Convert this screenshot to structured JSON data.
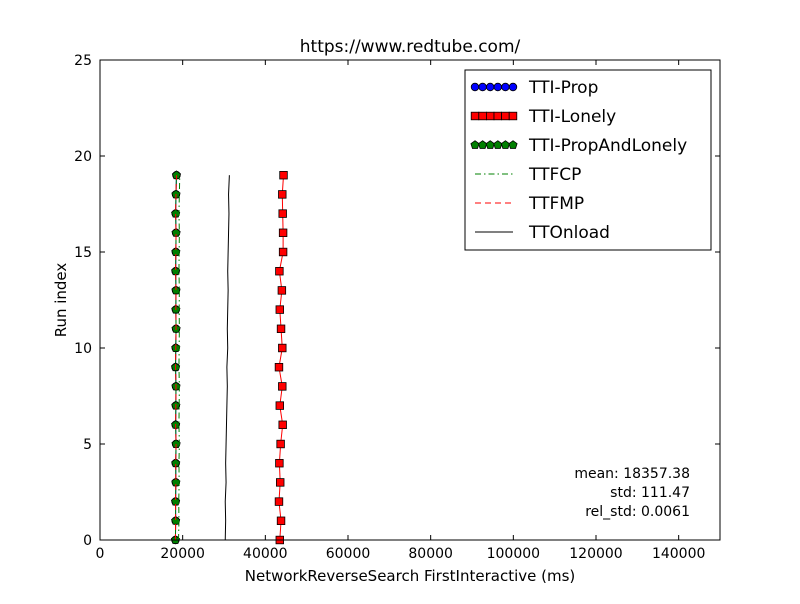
{
  "chart_data": {
    "type": "line",
    "title": "https://www.redtube.com/",
    "xlabel": "NetworkReverseSearch FirstInteractive (ms)",
    "ylabel": "Run index",
    "xlim": [
      0,
      150000
    ],
    "ylim": [
      0,
      25
    ],
    "x_ticks": [
      0,
      20000,
      40000,
      60000,
      80000,
      100000,
      120000,
      140000
    ],
    "x_tick_labels": [
      "0",
      "20000",
      "40000",
      "60000",
      "80000",
      "100000",
      "120000",
      "140000"
    ],
    "y_ticks": [
      0,
      5,
      10,
      15,
      20,
      25
    ],
    "y_tick_labels": [
      "0",
      "5",
      "10",
      "15",
      "20",
      "25"
    ],
    "grid": false,
    "legend_position": "top-right",
    "y": [
      0,
      1,
      2,
      3,
      4,
      5,
      6,
      7,
      8,
      9,
      10,
      11,
      12,
      13,
      14,
      15,
      16,
      17,
      18,
      19
    ],
    "series": [
      {
        "name": "TTI-Prop",
        "style": "solid-with-circle-markers",
        "color": "#0000ff",
        "x": [
          18250,
          18300,
          18280,
          18350,
          18320,
          18400,
          18300,
          18350,
          18380,
          18280,
          18330,
          18400,
          18350,
          18380,
          18300,
          18350,
          18400,
          18300,
          18380,
          18500
        ]
      },
      {
        "name": "TTI-Lonely",
        "style": "solid-with-square-markers",
        "color": "#ff0000",
        "x": [
          43500,
          43800,
          43300,
          43600,
          43400,
          43700,
          44200,
          43500,
          44100,
          43300,
          44100,
          43800,
          43500,
          44000,
          43400,
          44300,
          44300,
          44200,
          44100,
          44400
        ]
      },
      {
        "name": "TTI-PropAndLonely",
        "style": "solid-with-pentagon-markers",
        "color": "#007f00",
        "x": [
          18250,
          18300,
          18280,
          18350,
          18320,
          18400,
          18300,
          18350,
          18380,
          18280,
          18330,
          18400,
          18350,
          18380,
          18300,
          18350,
          18400,
          18300,
          18380,
          18500
        ]
      },
      {
        "name": "TTFCP",
        "style": "dash-dot",
        "color": "#008000",
        "x": [
          19000,
          19100,
          19050,
          19150,
          19100,
          19200,
          19100,
          19150,
          19200,
          19100,
          19150,
          19200,
          19150,
          19200,
          19100,
          19150,
          19200,
          19100,
          19200,
          19300
        ]
      },
      {
        "name": "TTFMP",
        "style": "dashed",
        "color": "#ff0000",
        "x": [
          18250,
          18300,
          18280,
          18350,
          18320,
          18400,
          18300,
          18350,
          18380,
          18280,
          18330,
          18400,
          18350,
          18380,
          18300,
          18350,
          18400,
          18300,
          18380,
          18500
        ]
      },
      {
        "name": "TTOnload",
        "style": "solid",
        "color": "#000000",
        "x": [
          30300,
          30400,
          30300,
          30500,
          30400,
          30500,
          30600,
          30700,
          30800,
          30700,
          30900,
          30800,
          30900,
          31000,
          30900,
          31000,
          31100,
          31200,
          31100,
          31300
        ]
      }
    ],
    "annotations": [
      "mean: 18357.38",
      "std: 111.47",
      "rel_std: 0.0061"
    ]
  }
}
